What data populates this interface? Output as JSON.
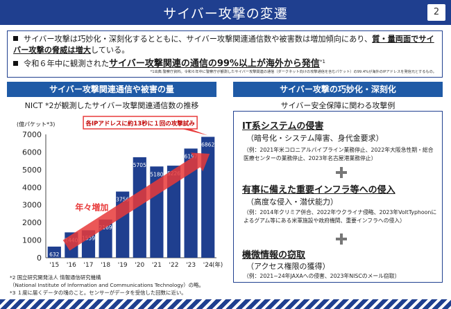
{
  "header": {
    "title": "サイバー攻撃の変遷",
    "page_number": "2"
  },
  "summary": {
    "bullet1_a": "サイバー攻撃は巧妙化・深刻化するとともに、サイバー攻撃関連通信数や被害数は増加傾向にあり、",
    "bullet1_strong": "質・量両面でサイバー攻撃の脅威は増大",
    "bullet1_b": "している。",
    "bullet2_a": "令和６年中に観測された",
    "bullet2_strong": "サイバー攻撃関連の通信の99%以上が海外から発信",
    "bullet2_sup": "*1",
    "footnote": "*1出典:警察庁資料。令和６年中に警察庁が観測したサイバー攻撃関連の通信（ダークネット向けの攻撃通信を含むパケット）の99.4%が海外のIPアドレスを発信元とするもの。"
  },
  "left_panel": {
    "heading": "サイバー攻撃関連通信や被害の量",
    "subheading": "NICT *2が観測したサイバー攻撃関連通信数の推移",
    "y_unit": "(億パケット*3)",
    "x_unit": "(年)",
    "callout": "各IPアドレスに約13秒に１回の攻撃試み",
    "trend_label": "年々増加"
  },
  "chart_data": {
    "type": "bar",
    "categories": [
      "'15",
      "'16",
      "'17",
      "'18",
      "'19",
      "'20",
      "'21",
      "'22",
      "'23",
      "'24"
    ],
    "values": [
      632,
      1440,
      1559,
      2169,
      3756,
      5705,
      5180,
      5226,
      6197,
      6862
    ],
    "yticks": [
      0,
      1000,
      2000,
      3000,
      4000,
      5000,
      6000,
      7000
    ],
    "ylim": [
      0,
      7000
    ],
    "bar_color": "#1f3f8f",
    "arrow_color": "#e83a3a",
    "grid": false
  },
  "notes": {
    "line1": "*2 国立研究開発法人 情報通信研究機構",
    "line2": "（National Institute of Information and Communications Technology）の略。",
    "line3": "*3 １度に届くデータの塊のこと。センサーがデータを受信した回数に近い。"
  },
  "right_panel": {
    "heading": "サイバー攻撃の巧妙化・深刻化",
    "subheading": "サイバー安全保障に関わる攻撃例",
    "items": [
      {
        "title": "IT系システムの侵害",
        "sub": "（暗号化・システム障害、身代金要求）",
        "example": "（例：2021年米コロニアルパイプライン業務停止、2022年大阪急性期・総合医療センターの業務停止、2023年名古屋港業務停止）"
      },
      {
        "title": "有事に備えた重要インフラ等への侵入",
        "sub": "（高度な侵入・潜伏能力）",
        "example": "（例：2014年クリミア併合、2022年ウクライナ侵略、2023年VoltTyphoonによるグアム等にある米軍施設や政府機関、重要インフラへの侵入）"
      },
      {
        "title": "機微情報の窃取",
        "sub": "（アクセス権限の獲得）",
        "example": "（例：2021~24年JAXAへの侵害、2023年NISCのメール窃取）"
      }
    ]
  }
}
